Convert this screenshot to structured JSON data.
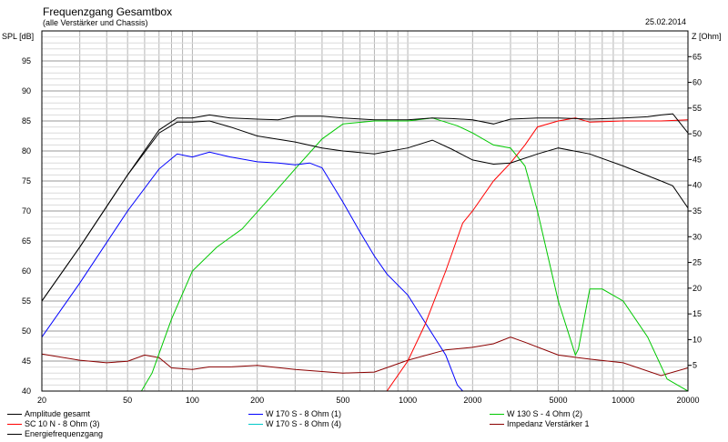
{
  "header": {
    "title": "Frequenzgang Gesamtbox",
    "subtitle": "(alle Verstärker und Chassis)",
    "date": "25.02.2014"
  },
  "chart_data": {
    "type": "line",
    "title": "Frequenzgang Gesamtbox",
    "subtitle": "(alle Verstärker und Chassis)",
    "xlabel": "",
    "ylabel": "SPL [dB]",
    "y2label": "Z [Ohm]",
    "xscale": "log",
    "xlim": [
      20,
      20000
    ],
    "ylim": [
      40,
      100
    ],
    "y2lim": [
      0,
      70
    ],
    "grid": true,
    "legend_position": "bottom",
    "x_tick_labels": [
      "20",
      "50",
      "100",
      "200",
      "500",
      "1000",
      "2000",
      "5000",
      "10000",
      "20000"
    ],
    "y_tick_labels": [
      "95",
      "90",
      "85",
      "80",
      "75",
      "70",
      "65",
      "60",
      "55",
      "50",
      "45",
      "40"
    ],
    "y2_tick_labels": [
      "65",
      "60",
      "55",
      "50",
      "45",
      "40",
      "35",
      "30",
      "25",
      "20",
      "15",
      "10",
      "5"
    ],
    "series": [
      {
        "name": "Amplitude gesamt",
        "color": "#000000",
        "axis": "left",
        "x": [
          20,
          30,
          50,
          70,
          85,
          100,
          120,
          150,
          200,
          250,
          300,
          400,
          500,
          700,
          1000,
          1300,
          1600,
          2000,
          2500,
          3000,
          4000,
          5000,
          7000,
          10000,
          13000,
          15000,
          17000,
          20000
        ],
        "y": [
          55,
          64,
          76,
          83.5,
          85.5,
          85.5,
          86,
          85.5,
          85.3,
          85.2,
          85.8,
          85.8,
          85.5,
          85.2,
          85.2,
          85.5,
          85.4,
          85.2,
          84.5,
          85.3,
          85.5,
          85.5,
          85.3,
          85.5,
          85.7,
          86,
          86.2,
          83
        ]
      },
      {
        "name": "W 170 S - 8 Ohm (1)",
        "color": "#0000ff",
        "axis": "left",
        "x": [
          20,
          30,
          50,
          70,
          85,
          100,
          120,
          150,
          200,
          250,
          300,
          350,
          400,
          500,
          600,
          700,
          800,
          1000,
          1200,
          1500,
          1700,
          1800,
          2000,
          3000,
          5000,
          10000,
          20000
        ],
        "y": [
          49,
          58,
          70,
          77,
          79.5,
          79,
          79.8,
          79,
          78.2,
          78,
          77.7,
          78,
          77.2,
          71.5,
          66.5,
          62.5,
          59.5,
          56,
          51.5,
          46,
          41,
          40,
          40,
          40,
          40,
          40,
          40
        ]
      },
      {
        "name": "SC 10 N - 8 Ohm (3)",
        "color": "#ff0000",
        "axis": "left",
        "x": [
          20,
          800,
          1000,
          1200,
          1500,
          1800,
          2000,
          2500,
          3000,
          3500,
          4000,
          5000,
          6000,
          7000,
          10000,
          15000,
          20000
        ],
        "y": [
          40,
          40,
          45,
          51,
          60,
          68,
          70,
          75,
          78,
          81,
          84,
          85,
          85.5,
          84.8,
          85,
          85,
          85.2
        ]
      },
      {
        "name": "W 170 S - 8 Ohm (4)",
        "color": "#00c8c8",
        "axis": "left",
        "x": [
          20,
          20000
        ],
        "y": [
          40,
          40
        ]
      },
      {
        "name": "W 130 S - 4 Ohm (2)",
        "color": "#00c800",
        "axis": "left",
        "x": [
          20,
          58,
          65,
          80,
          100,
          130,
          170,
          220,
          300,
          400,
          500,
          700,
          1000,
          1300,
          1700,
          2000,
          2500,
          3000,
          3500,
          4000,
          5000,
          6000,
          6200,
          7000,
          8000,
          10000,
          13000,
          16000,
          20000
        ],
        "y": [
          40,
          40,
          43,
          52,
          60,
          64,
          67,
          71.5,
          77,
          82,
          84.5,
          85,
          85,
          85.5,
          84.2,
          83,
          81,
          80.5,
          77.5,
          70,
          55,
          46,
          47,
          57,
          57,
          55,
          49,
          42,
          40
        ]
      },
      {
        "name": "Impedanz Verstärker 1",
        "color": "#8b0000",
        "axis": "right",
        "x": [
          20,
          30,
          40,
          50,
          60,
          70,
          80,
          100,
          120,
          150,
          200,
          300,
          500,
          700,
          1000,
          1500,
          2000,
          2500,
          3000,
          3500,
          5000,
          7000,
          10000,
          15000,
          20000
        ],
        "y": [
          7.2,
          6,
          5.5,
          5.8,
          7,
          6.5,
          4.5,
          4.2,
          4.7,
          4.7,
          5,
          4.2,
          3.5,
          3.7,
          6,
          8,
          8.5,
          9.2,
          10.5,
          9.5,
          7,
          6.2,
          5.5,
          3,
          4.5
        ]
      },
      {
        "name": "Energiefrequenzgang",
        "color": "#000000",
        "axis": "left",
        "x": [
          20,
          30,
          50,
          70,
          85,
          100,
          120,
          150,
          200,
          300,
          400,
          500,
          700,
          1000,
          1300,
          1600,
          2000,
          2500,
          3000,
          4000,
          5000,
          7000,
          10000,
          15000,
          17000,
          20000
        ],
        "y": [
          55,
          64,
          76,
          83,
          84.8,
          84.8,
          85,
          84,
          82.5,
          81.5,
          80.5,
          80,
          79.5,
          80.5,
          81.8,
          80.3,
          78.5,
          77.8,
          78,
          79.5,
          80.5,
          79.5,
          77.5,
          75,
          74.2,
          70.5
        ]
      }
    ]
  },
  "legend": {
    "items": [
      {
        "label": "Amplitude gesamt",
        "color": "#000000"
      },
      {
        "label": "W 170 S - 8 Ohm (1)",
        "color": "#0000ff"
      },
      {
        "label": "W 130 S - 4 Ohm (2)",
        "color": "#00c800"
      },
      {
        "label": "SC 10 N - 8 Ohm (3)",
        "color": "#ff0000"
      },
      {
        "label": "W 170 S - 8 Ohm (4)",
        "color": "#00c8c8"
      },
      {
        "label": "Impedanz Verstärker 1",
        "color": "#8b0000"
      },
      {
        "label": "Energiefrequenzgang",
        "color": "#000000"
      }
    ]
  }
}
